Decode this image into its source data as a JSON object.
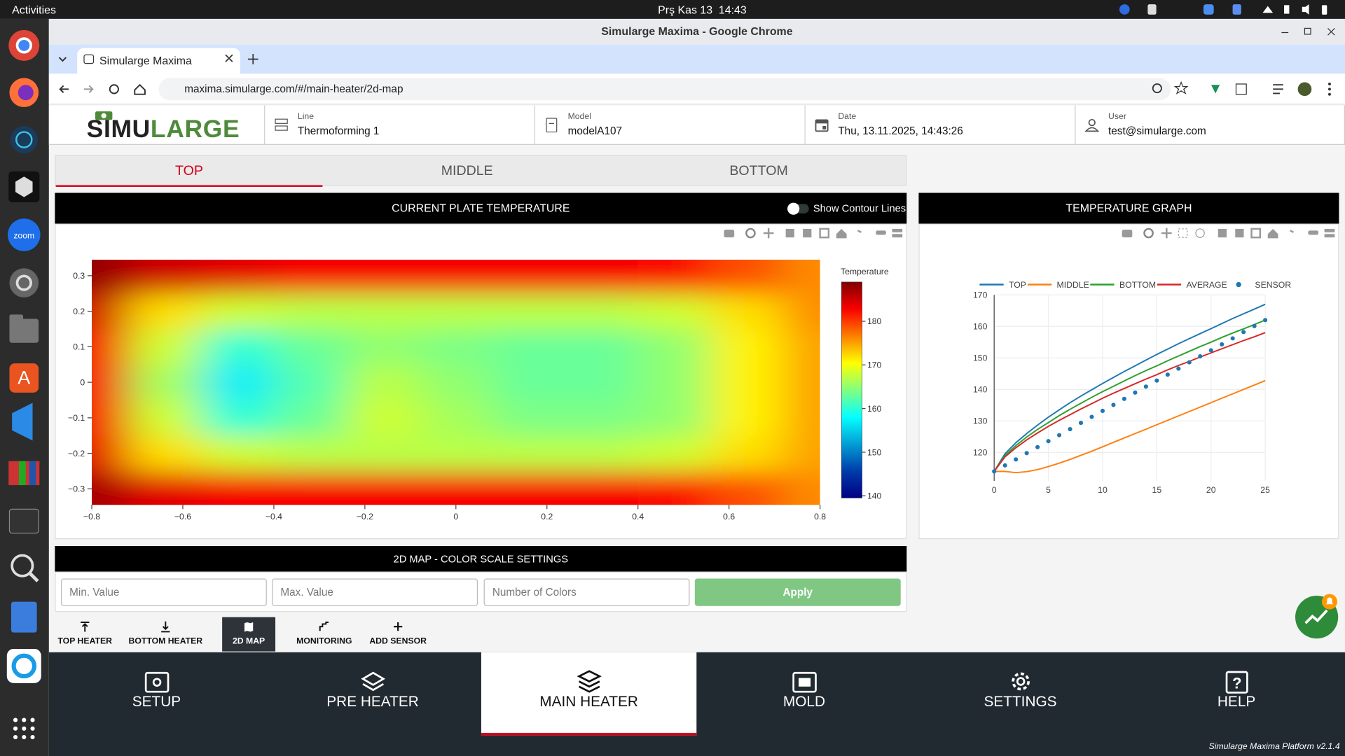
{
  "os_bar": {
    "activities": "Activities",
    "clock": "Prş Kas 13  14:43"
  },
  "dock": {
    "zoom_label": "zoom"
  },
  "browser": {
    "window_title": "Simularge Maxima - Google Chrome",
    "tab_title": "Simularge Maxima",
    "url": "maxima.simularge.com/#/main-heater/2d-map"
  },
  "header": {
    "logo": [
      "SIMU",
      "LARGE"
    ],
    "fields": [
      {
        "label": "Line",
        "value": "Thermoforming 1"
      },
      {
        "label": "Model",
        "value": "modelA107"
      },
      {
        "label": "Date",
        "value": "Thu, 13.11.2025, 14:43:26"
      },
      {
        "label": "User",
        "value": "test@simularge.com"
      }
    ]
  },
  "plate_tabs": [
    "TOP",
    "MIDDLE",
    "BOTTOM"
  ],
  "plate_panel": {
    "title": "CURRENT PLATE TEMPERATURE",
    "toggle_label": "Show Contour Lines"
  },
  "graph_panel": {
    "title": "TEMPERATURE GRAPH"
  },
  "color_scale_settings": {
    "title": "2D MAP - COLOR SCALE SETTINGS",
    "placeholders": [
      "Min. Value",
      "Max. Value",
      "Number of Colors"
    ],
    "button": "Apply"
  },
  "sub_nav": [
    "TOP HEATER",
    "BOTTOM HEATER",
    "2D MAP",
    "MONITORING",
    "ADD SENSOR"
  ],
  "main_nav": [
    "SETUP",
    "PRE HEATER",
    "MAIN HEATER",
    "MOLD",
    "SETTINGS",
    "HELP"
  ],
  "footer": "Simularge Maxima Platform v2.1.4",
  "chart_data": [
    {
      "type": "heatmap",
      "colorbar_title": "Temperature",
      "x": [
        -0.8,
        -0.64,
        -0.48,
        -0.32,
        -0.16,
        0,
        0.16,
        0.32,
        0.48,
        0.64,
        0.8
      ],
      "y": [
        -0.3,
        -0.2,
        -0.1,
        0,
        0.1,
        0.2,
        0.3
      ],
      "z": [
        [
          187,
          184,
          183,
          183,
          183,
          183,
          183,
          183,
          182,
          179,
          176
        ],
        [
          184,
          172,
          168,
          167,
          167,
          167,
          167,
          167,
          168,
          172,
          175
        ],
        [
          183,
          168,
          160,
          163,
          168,
          166,
          164,
          164,
          165,
          171,
          175
        ],
        [
          183,
          166,
          157,
          162,
          167,
          165,
          163,
          163,
          165,
          171,
          175
        ],
        [
          183,
          168,
          160,
          163,
          165,
          164,
          163,
          163,
          165,
          171,
          175
        ],
        [
          185,
          172,
          168,
          167,
          167,
          167,
          167,
          167,
          168,
          172,
          176
        ],
        [
          188,
          185,
          184,
          183,
          183,
          183,
          183,
          183,
          182,
          179,
          176
        ]
      ],
      "colorscale": [
        [
          0,
          "#000083"
        ],
        [
          0.125,
          "#003caa"
        ],
        [
          0.375,
          "#05ffff"
        ],
        [
          0.625,
          "#ffff00"
        ],
        [
          0.875,
          "#fa0000"
        ],
        [
          1,
          "#800000"
        ]
      ],
      "zlim": [
        139.5,
        189
      ],
      "zticks": [
        140,
        150,
        160,
        170,
        180
      ],
      "xlim": [
        -0.8,
        0.8
      ],
      "ylim": [
        -0.345,
        0.345
      ],
      "xticks": [
        {
          "value": -0.8,
          "label": "−0.8"
        },
        {
          "value": -0.6,
          "label": "−0.6"
        },
        {
          "value": -0.4,
          "label": "−0.4"
        },
        {
          "value": -0.2,
          "label": "−0.2"
        },
        0,
        0.2,
        0.4,
        0.6,
        0.8
      ],
      "yticks": [
        {
          "value": -0.3,
          "label": "−0.3"
        },
        {
          "value": -0.2,
          "label": "−0.2"
        },
        {
          "value": -0.1,
          "label": "−0.1"
        },
        0,
        0.1,
        0.2,
        0.3
      ]
    },
    {
      "type": "line",
      "x": [
        0,
        1,
        2,
        3,
        4,
        5,
        6,
        7,
        8,
        9,
        10,
        11,
        12,
        13,
        14,
        15,
        16,
        17,
        18,
        19,
        20,
        21,
        22,
        23,
        24,
        25
      ],
      "series": [
        {
          "name": "TOP",
          "color": "#1f77b4",
          "values": [
            114,
            119.6,
            123.1,
            126.0,
            128.7,
            131.2,
            133.5,
            135.8,
            137.9,
            139.9,
            141.9,
            143.8,
            145.7,
            147.5,
            149.3,
            151.1,
            152.8,
            154.5,
            156.1,
            157.7,
            159.3,
            160.9,
            162.5,
            164.0,
            165.5,
            167.0
          ]
        },
        {
          "name": "MIDDLE",
          "color": "#ff7f0e",
          "values": [
            114,
            114,
            113.6,
            113.9,
            114.6,
            115.5,
            116.6,
            117.8,
            119.1,
            120.4,
            121.8,
            123.2,
            124.6,
            126.0,
            127.4,
            128.8,
            130.2,
            131.6,
            133.0,
            134.4,
            135.8,
            137.2,
            138.6,
            140.0,
            141.4,
            142.8
          ]
        },
        {
          "name": "BOTTOM",
          "color": "#2ca02c",
          "values": [
            114,
            119.0,
            122.2,
            124.9,
            127.3,
            129.5,
            131.7,
            133.7,
            135.6,
            137.5,
            139.3,
            141.0,
            142.7,
            144.4,
            146.0,
            147.5,
            149.1,
            150.6,
            152.1,
            153.6,
            155.0,
            156.5,
            157.9,
            159.2,
            160.6,
            162.0
          ]
        },
        {
          "name": "AVERAGE",
          "color": "#d62728",
          "values": [
            114,
            118.6,
            121.5,
            124.0,
            126.2,
            128.3,
            130.2,
            132.0,
            133.8,
            135.5,
            137.2,
            138.8,
            140.3,
            141.8,
            143.3,
            144.7,
            146.2,
            147.6,
            148.9,
            150.3,
            151.6,
            152.9,
            154.2,
            155.5,
            156.7,
            158.0
          ]
        },
        {
          "name": "SENSOR",
          "color": "#1f77b4",
          "mode": "markers",
          "values": [
            114,
            115.9,
            117.8,
            119.8,
            121.7,
            123.6,
            125.5,
            127.4,
            129.4,
            131.3,
            133.2,
            135.1,
            137.0,
            139.0,
            140.9,
            142.8,
            144.7,
            146.6,
            148.6,
            150.5,
            152.4,
            154.3,
            156.2,
            158.2,
            160.1,
            162.0
          ]
        }
      ],
      "xlim": [
        0,
        25
      ],
      "ylim": [
        111,
        170
      ],
      "xticks": [
        0,
        5,
        10,
        15,
        20,
        25
      ],
      "yticks": [
        120,
        130,
        140,
        150,
        160,
        170
      ],
      "legend": "top",
      "grid": true
    }
  ]
}
